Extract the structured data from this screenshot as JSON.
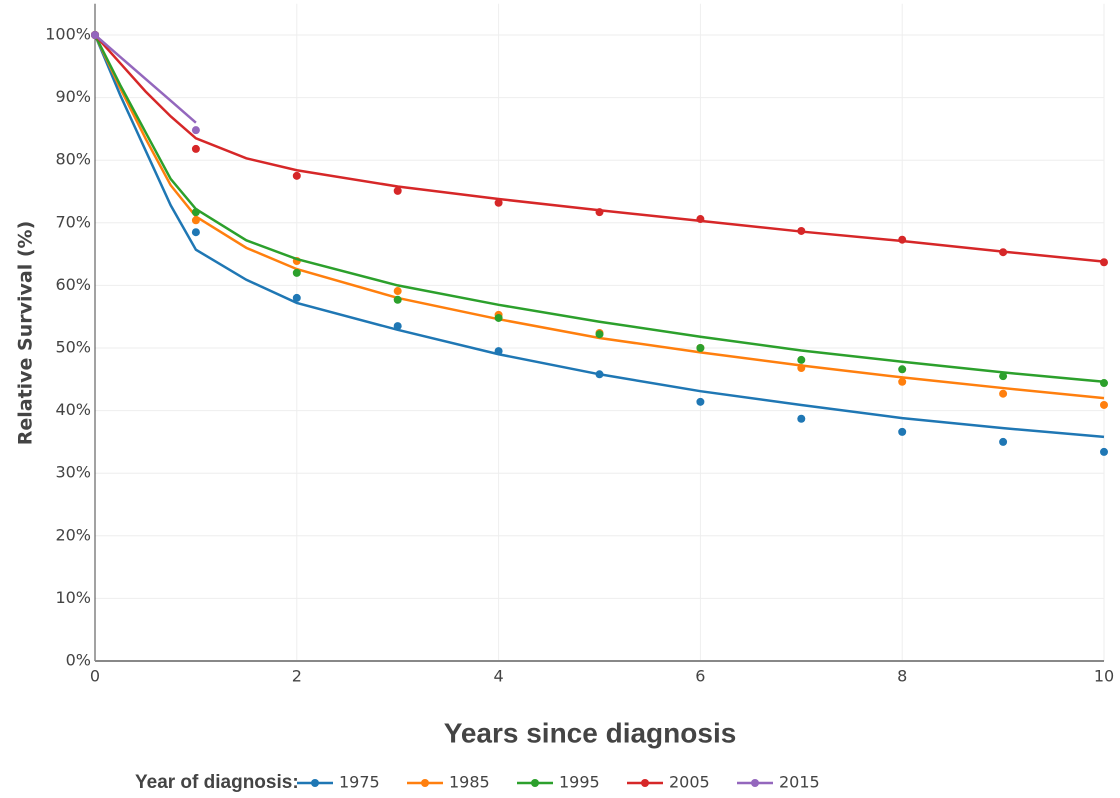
{
  "chart_data": {
    "type": "line",
    "y_label": "Relative Survival (%)",
    "x_label": "Years since diagnosis",
    "legend_title": "Year of diagnosis:",
    "legend": "bottom",
    "grid": true,
    "x": [
      0,
      1,
      2,
      3,
      4,
      5,
      6,
      7,
      8,
      9,
      10
    ],
    "fit_x": [
      0,
      0.25,
      0.5,
      0.75,
      1,
      1.5,
      2,
      3,
      4,
      5,
      6,
      7,
      8,
      9,
      10
    ],
    "xlim": [
      0,
      10
    ],
    "xticks": [
      0,
      2,
      4,
      6,
      8,
      10
    ],
    "ylim": [
      0,
      105
    ],
    "yticks": [
      {
        "value": 0,
        "label": "0%"
      },
      {
        "value": 10,
        "label": "10%"
      },
      {
        "value": 20,
        "label": "20%"
      },
      {
        "value": 30,
        "label": "30%"
      },
      {
        "value": 40,
        "label": "40%"
      },
      {
        "value": 50,
        "label": "50%"
      },
      {
        "value": 60,
        "label": "60%"
      },
      {
        "value": 70,
        "label": "70%"
      },
      {
        "value": 80,
        "label": "80%"
      },
      {
        "value": 90,
        "label": "90%"
      },
      {
        "value": 100,
        "label": "100%"
      }
    ],
    "series": [
      {
        "name": "1975",
        "color": "#1f77b4",
        "values": [
          100,
          68.5,
          58.0,
          53.5,
          49.5,
          45.8,
          41.4,
          38.7,
          36.6,
          35.0,
          33.4
        ],
        "fit_values": [
          100,
          90.4,
          81.6,
          72.8,
          65.7,
          60.9,
          57.2,
          52.9,
          49.0,
          45.8,
          43.1,
          40.9,
          38.8,
          37.2,
          35.8
        ]
      },
      {
        "name": "1985",
        "color": "#ff7f0e",
        "values": [
          100,
          70.4,
          63.9,
          59.1,
          55.3,
          52.4,
          50.0,
          46.8,
          44.6,
          42.7,
          40.9
        ],
        "fit_values": [
          100,
          91.5,
          83.5,
          76.0,
          71.0,
          66.0,
          62.6,
          58.0,
          54.6,
          51.6,
          49.3,
          47.2,
          45.3,
          43.6,
          42.0
        ]
      },
      {
        "name": "1995",
        "color": "#2ca02c",
        "values": [
          100,
          71.7,
          62.0,
          57.7,
          54.8,
          52.2,
          50.0,
          48.1,
          46.6,
          45.5,
          44.4
        ],
        "fit_values": [
          100,
          92.0,
          84.5,
          77.0,
          72.2,
          67.2,
          64.2,
          60.0,
          56.9,
          54.2,
          51.8,
          49.6,
          47.8,
          46.1,
          44.6
        ]
      },
      {
        "name": "2005",
        "color": "#d62728",
        "values": [
          100,
          81.8,
          77.5,
          75.1,
          73.2,
          71.7,
          70.6,
          68.7,
          67.3,
          65.3,
          63.7
        ],
        "fit_values": [
          100,
          95.5,
          91.0,
          87.0,
          83.5,
          80.3,
          78.4,
          75.8,
          73.8,
          72.0,
          70.3,
          68.6,
          67.1,
          65.4,
          63.8
        ]
      },
      {
        "name": "2015",
        "color": "#9467bd",
        "values": [
          100,
          84.8,
          null,
          null,
          null,
          null,
          null,
          null,
          null,
          null,
          null
        ],
        "fit_values": [
          100,
          96.5,
          93.0,
          89.5,
          86.0,
          null,
          null,
          null,
          null,
          null,
          null,
          null,
          null,
          null,
          null
        ]
      }
    ]
  }
}
